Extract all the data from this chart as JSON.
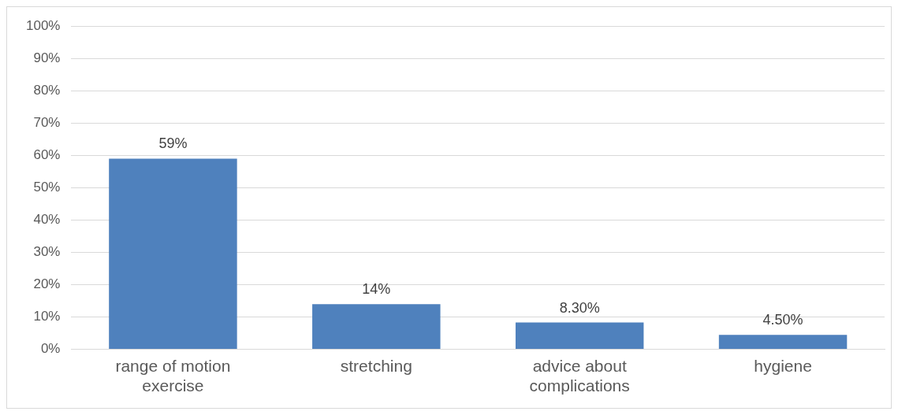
{
  "chart_data": {
    "type": "bar",
    "categories": [
      "range of motion exercise",
      "stretching",
      "advice about complications",
      "hygiene"
    ],
    "values": [
      59,
      14,
      8.3,
      4.5
    ],
    "value_labels": [
      "59%",
      "14%",
      "8.30%",
      "4.50%"
    ],
    "color": "#4f81bd",
    "ylim": [
      0,
      100
    ],
    "yticks": [
      {
        "value": 0,
        "label": "0%"
      },
      {
        "value": 10,
        "label": "10%"
      },
      {
        "value": 20,
        "label": "20%"
      },
      {
        "value": 30,
        "label": "30%"
      },
      {
        "value": 40,
        "label": "40%"
      },
      {
        "value": 50,
        "label": "50%"
      },
      {
        "value": 60,
        "label": "60%"
      },
      {
        "value": 70,
        "label": "70%"
      },
      {
        "value": 80,
        "label": "80%"
      },
      {
        "value": 90,
        "label": "90%"
      },
      {
        "value": 100,
        "label": "100%"
      }
    ],
    "grid": "y",
    "legend": false
  }
}
